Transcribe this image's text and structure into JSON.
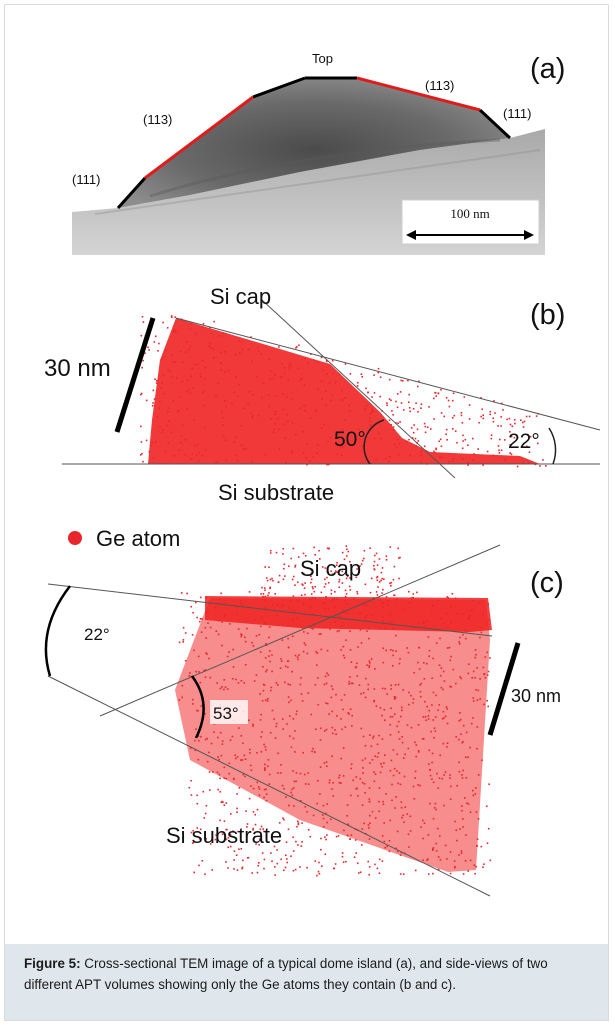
{
  "figure": {
    "panel_a": {
      "label": "(a)",
      "facets": {
        "top": "Top",
        "left_113": "(113)",
        "right_113": "(113)",
        "left_111": "(111)",
        "right_111": "(111)"
      },
      "scale_bar": "100 nm"
    },
    "panel_b": {
      "label": "(b)",
      "si_cap": "Si cap",
      "si_substrate": "Si substrate",
      "scale": "30 nm",
      "angle_50": "50°",
      "angle_22": "22°"
    },
    "legend": {
      "label": "Ge atom",
      "color": "#e8262c"
    },
    "panel_c": {
      "label": "(c)",
      "si_cap": "Si cap",
      "si_substrate": "Si substrate",
      "scale": "30 nm",
      "angle_22": "22°",
      "angle_53": "53°"
    }
  },
  "caption": {
    "label": "Figure 5:",
    "text": " Cross-sectional TEM image of a typical dome island (a), and side-views of two different APT volumes showing only the Ge atoms they contain (b and c)."
  }
}
